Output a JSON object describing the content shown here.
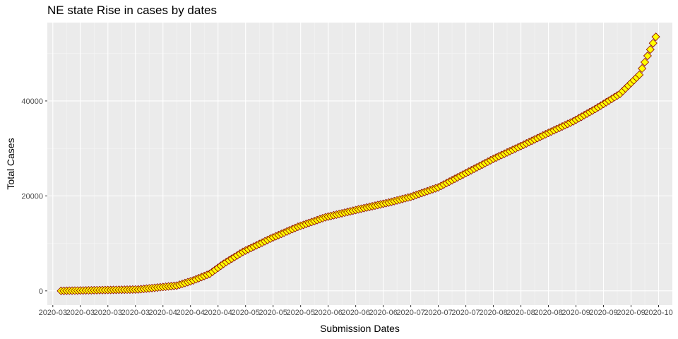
{
  "chart_data": {
    "type": "scatter",
    "title": "NE state Rise in cases by dates",
    "xlabel": "Submission Dates",
    "ylabel": "Total Cases",
    "x_range": [
      "2020-02-28",
      "2020-10-12"
    ],
    "ylim": [
      -3000,
      56500
    ],
    "x_ticks": [
      "2020-03-01",
      "2020-03-11",
      "2020-03-21",
      "2020-03-31",
      "2020-04-10",
      "2020-04-20",
      "2020-04-30",
      "2020-05-10",
      "2020-05-20",
      "2020-05-30",
      "2020-06-09",
      "2020-06-19",
      "2020-06-29",
      "2020-07-09",
      "2020-07-19",
      "2020-07-29",
      "2020-08-08",
      "2020-08-18",
      "2020-08-28",
      "2020-09-07",
      "2020-09-17",
      "2020-09-27",
      "2020-10-07"
    ],
    "x_tick_labels": [
      "2020-03",
      "2020-03",
      "2020-03",
      "2020-03",
      "2020-04",
      "2020-04",
      "2020-04",
      "2020-05",
      "2020-05",
      "2020-05",
      "2020-06",
      "2020-06",
      "2020-06",
      "2020-07",
      "2020-07",
      "2020-07",
      "2020-08",
      "2020-08",
      "2020-08",
      "2020-09",
      "2020-09",
      "2020-09",
      "2020-10"
    ],
    "y_ticks": [
      0,
      20000,
      40000
    ],
    "y_tick_labels": [
      "0",
      "20000",
      "40000"
    ],
    "grid": true,
    "marker": {
      "shape": "diamond",
      "fill": "#ffff00",
      "stroke": "#8b0000"
    },
    "panel_background": "#ebebeb",
    "series": [
      {
        "x": [
          "2020-03-04",
          "2020-04-01",
          "2020-04-15",
          "2020-04-21",
          "2020-04-27",
          "2020-05-02",
          "2020-05-09",
          "2020-05-19",
          "2020-05-29",
          "2020-06-08",
          "2020-06-21",
          "2020-07-01",
          "2020-07-09",
          "2020-07-19",
          "2020-07-29",
          "2020-08-08",
          "2020-08-18",
          "2020-08-27",
          "2020-09-06",
          "2020-09-14",
          "2020-09-23",
          "2020-09-30",
          "2020-10-06"
        ],
        "y": [
          0,
          300,
          1100,
          2200,
          3600,
          5700,
          8200,
          11000,
          13500,
          15500,
          17300,
          18600,
          19800,
          21800,
          24800,
          27800,
          30500,
          33000,
          35700,
          38300,
          41500,
          45500,
          53500
        ]
      }
    ]
  }
}
